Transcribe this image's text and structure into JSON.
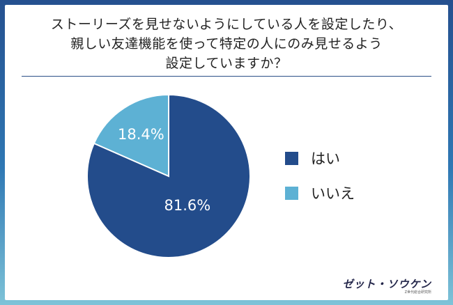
{
  "title": "ストーリーズを見せないようにしている人を設定したり、\n親しい友達機能を使って特定の人にのみ見せるよう\n設定していますか？",
  "colors": {
    "yes": "#234c8b",
    "no": "#5db1d4",
    "frame_top": "#25508f",
    "frame_bottom": "#7ec3d8"
  },
  "legend": [
    {
      "label": "はい",
      "color": "#234c8b"
    },
    {
      "label": "いいえ",
      "color": "#5db1d4"
    }
  ],
  "chart_data": {
    "type": "pie",
    "categories": [
      "はい",
      "いいえ"
    ],
    "values": [
      81.6,
      18.4
    ],
    "labels": [
      "81.6%",
      "18.4%"
    ],
    "colors": [
      "#234c8b",
      "#5db1d4"
    ],
    "start": "12 o'clock",
    "direction": "clockwise",
    "legend_position": "right"
  },
  "logo": {
    "name": "ゼット・ソウケン",
    "sub": "Z世代総合研究所"
  }
}
